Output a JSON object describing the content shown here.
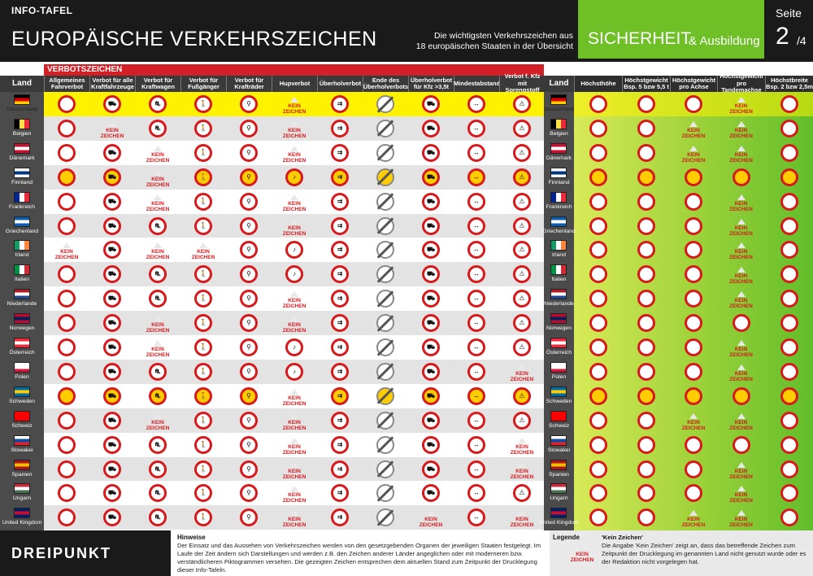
{
  "header": {
    "info_tafel": "INFO-TAFEL",
    "title": "EUROPÄISCHE VERKEHRSZEICHEN",
    "subtitle_line1": "Die wichtigsten Verkehrszeichen aus",
    "subtitle_line2": "18 europäischen Staaten in der Übersicht",
    "category_main": "SICHERHEIT",
    "category_rest": "& Ausbildung",
    "page_label": "Seite",
    "page_number": "2",
    "page_total": "/4"
  },
  "section_label": "VERBOTSZEICHEN",
  "land_label": "Land",
  "columns_left": [
    "Allgemeines Fahrverbot",
    "Verbot für alle Kraftfahrzeuge",
    "Verbot für Kraftwagen",
    "Verbot für Fußgänger",
    "Verbot für Krafträder",
    "Hupverbot",
    "Überholverbot",
    "Ende des Überholverbots",
    "Überholverbot für Kfz >3,5t",
    "Mindestabstand",
    "Verbot f. Kfz mit Sprengstoff"
  ],
  "columns_right": [
    "Höchsthöhe",
    "Höchstgewicht Bsp. 5 bzw 5,5 t",
    "Höchstgewicht pro Achse",
    "Höchstgewicht pro Tandemachse",
    "Höchstbreite Bsp. 2 bzw 2,5m"
  ],
  "countries": [
    {
      "name": "Deutschland",
      "flag": [
        "#000000",
        "#dd0000",
        "#ffce00"
      ],
      "dir": "h"
    },
    {
      "name": "Belgien",
      "flag": [
        "#000000",
        "#fae042",
        "#ed2939"
      ],
      "dir": "v"
    },
    {
      "name": "Dänemark",
      "flag": [
        "#c8102e",
        "#ffffff",
        "#c8102e"
      ],
      "dir": "h"
    },
    {
      "name": "Finnland",
      "flag": [
        "#ffffff",
        "#003580",
        "#ffffff"
      ],
      "dir": "h"
    },
    {
      "name": "Frankreich",
      "flag": [
        "#002395",
        "#ffffff",
        "#ed2939"
      ],
      "dir": "v"
    },
    {
      "name": "Griechenland",
      "flag": [
        "#0d5eaf",
        "#ffffff",
        "#0d5eaf"
      ],
      "dir": "h"
    },
    {
      "name": "Irland",
      "flag": [
        "#169b62",
        "#ffffff",
        "#ff883e"
      ],
      "dir": "v"
    },
    {
      "name": "Italien",
      "flag": [
        "#009246",
        "#ffffff",
        "#ce2b37"
      ],
      "dir": "v"
    },
    {
      "name": "Niederlande",
      "flag": [
        "#ae1c28",
        "#ffffff",
        "#21468b"
      ],
      "dir": "h"
    },
    {
      "name": "Norwegen",
      "flag": [
        "#ba0c2f",
        "#00205b",
        "#ba0c2f"
      ],
      "dir": "h"
    },
    {
      "name": "Österreich",
      "flag": [
        "#ed2939",
        "#ffffff",
        "#ed2939"
      ],
      "dir": "h"
    },
    {
      "name": "Polen",
      "flag": [
        "#ffffff",
        "#ffffff",
        "#dc143c"
      ],
      "dir": "h"
    },
    {
      "name": "Schweden",
      "flag": [
        "#006aa7",
        "#fecc00",
        "#006aa7"
      ],
      "dir": "h"
    },
    {
      "name": "Schweiz",
      "flag": [
        "#ff0000",
        "#ff0000",
        "#ff0000"
      ],
      "dir": "h"
    },
    {
      "name": "Slowakei",
      "flag": [
        "#ffffff",
        "#0b4ea2",
        "#ee1c25"
      ],
      "dir": "h"
    },
    {
      "name": "Spanien",
      "flag": [
        "#aa151b",
        "#f1bf00",
        "#aa151b"
      ],
      "dir": "h"
    },
    {
      "name": "Ungarn",
      "flag": [
        "#ce2939",
        "#ffffff",
        "#477050"
      ],
      "dir": "h"
    },
    {
      "name": "United Kingdom",
      "flag": [
        "#012169",
        "#c8102e",
        "#012169"
      ],
      "dir": "h"
    }
  ],
  "kein_zeichen_line1": "KEIN",
  "kein_zeichen_line2": "ZEICHEN",
  "footer": {
    "logo": "DREIPUNKT",
    "hinweise_title": "Hinweise",
    "hinweise_text": "Der Einsatz und das Aussehen von Verkehrszeichen werden von den gesetzgebenden Organen der jeweiligen Staaten festgelegt. Im Laufe der Zeit ändern sich Darstellungen und werden z.B. den Zeichen anderer Länder angeglichen oder mit moderneren bzw. verständlicheren Piktogrammen versehen. Die gezeigten Zeichen entsprechen dem aktuellen Stand zum Zeitpunkt der Drucklegung dieser Info-Tafeln.",
    "legende_title": "Legende",
    "legende_item_title": "'Kein Zeichen'",
    "legende_text": "Die Angabe 'Kein Zeichen' zeigt an, dass das betreffende Zeichen zum Zeitpunkt der Drucklegung im genannten Land nicht genutzt wurde oder es der Redaktion nicht vorgelegen hat."
  },
  "colors": {
    "red": "#d7191c",
    "green": "#6fbf27",
    "yellow": "#fff200",
    "dark": "#1a1a1a"
  }
}
